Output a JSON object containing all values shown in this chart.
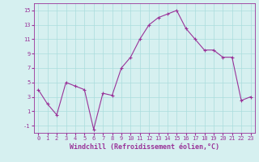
{
  "x": [
    0,
    1,
    2,
    3,
    4,
    5,
    6,
    7,
    8,
    9,
    10,
    11,
    12,
    13,
    14,
    15,
    16,
    17,
    18,
    19,
    20,
    21,
    22,
    23
  ],
  "y": [
    4.0,
    2.0,
    0.5,
    5.0,
    4.5,
    4.0,
    -1.5,
    3.5,
    3.2,
    7.0,
    8.5,
    11.0,
    13.0,
    14.0,
    14.5,
    15.0,
    12.5,
    11.0,
    9.5,
    9.5,
    8.5,
    8.5,
    2.5,
    3.0
  ],
  "line_color": "#993399",
  "marker": "+",
  "marker_size": 3,
  "xlabel": "Windchill (Refroidissement éolien,°C)",
  "xlabel_fontsize": 6,
  "ylim": [
    -2,
    16
  ],
  "xlim": [
    -0.5,
    23.5
  ],
  "yticks": [
    -1,
    1,
    3,
    5,
    7,
    9,
    11,
    13,
    15
  ],
  "xtick_labels": [
    "0",
    "1",
    "2",
    "3",
    "4",
    "5",
    "6",
    "7",
    "8",
    "9",
    "10",
    "11",
    "12",
    "13",
    "14",
    "15",
    "16",
    "17",
    "18",
    "19",
    "20",
    "21",
    "22",
    "23"
  ],
  "grid_color": "#aadddd",
  "bg_color": "#d6f0f0",
  "tick_color": "#993399",
  "tick_fontsize": 5
}
